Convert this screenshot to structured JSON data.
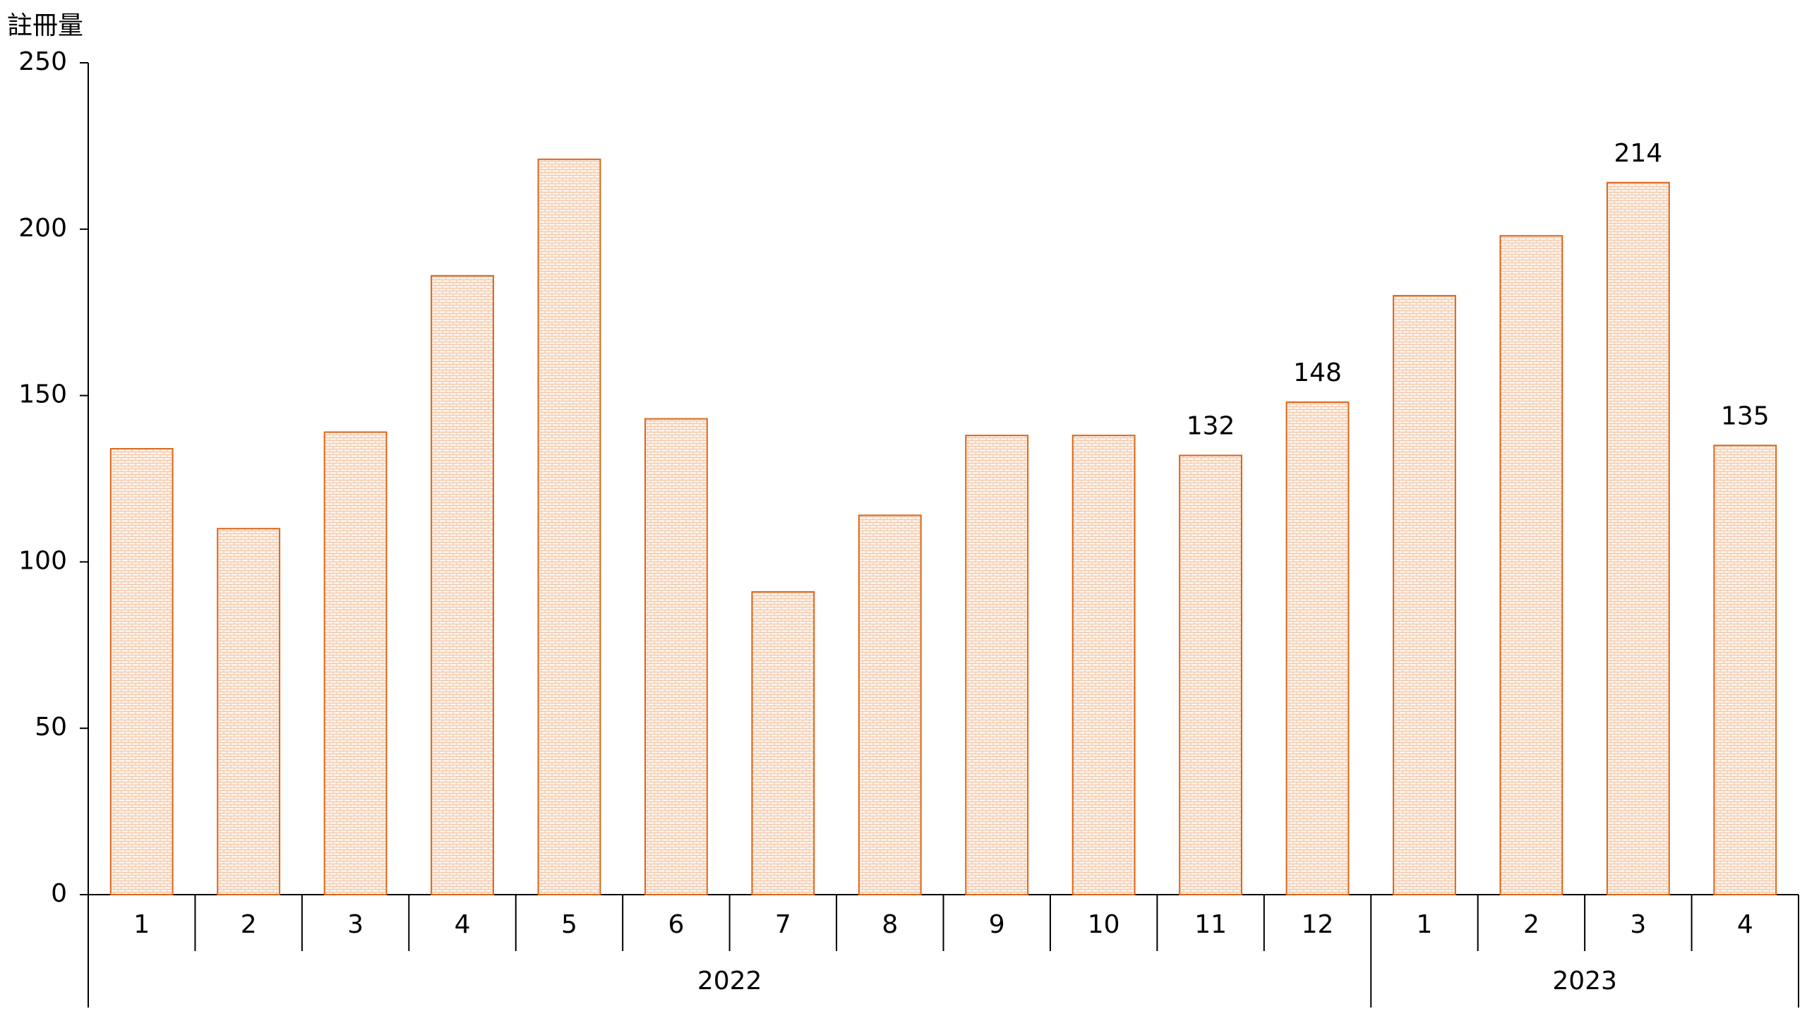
{
  "chart_data": {
    "type": "bar",
    "y_label": "註冊量",
    "groups": [
      {
        "label": "2022",
        "categories": [
          "1",
          "2",
          "3",
          "4",
          "5",
          "6",
          "7",
          "8",
          "9",
          "10",
          "11",
          "12"
        ]
      },
      {
        "label": "2023",
        "categories": [
          "1",
          "2",
          "3",
          "4"
        ]
      }
    ],
    "values": [
      134,
      110,
      139,
      186,
      221,
      143,
      91,
      114,
      138,
      138,
      132,
      148,
      180,
      198,
      214,
      135
    ],
    "value_labels": [
      null,
      null,
      null,
      null,
      null,
      null,
      null,
      null,
      null,
      null,
      "132",
      "148",
      null,
      null,
      "214",
      "135"
    ],
    "color": "#d9661a",
    "ylim": [
      0,
      250
    ],
    "yticks": [
      0,
      50,
      100,
      150,
      200,
      250
    ],
    "grid": false
  }
}
